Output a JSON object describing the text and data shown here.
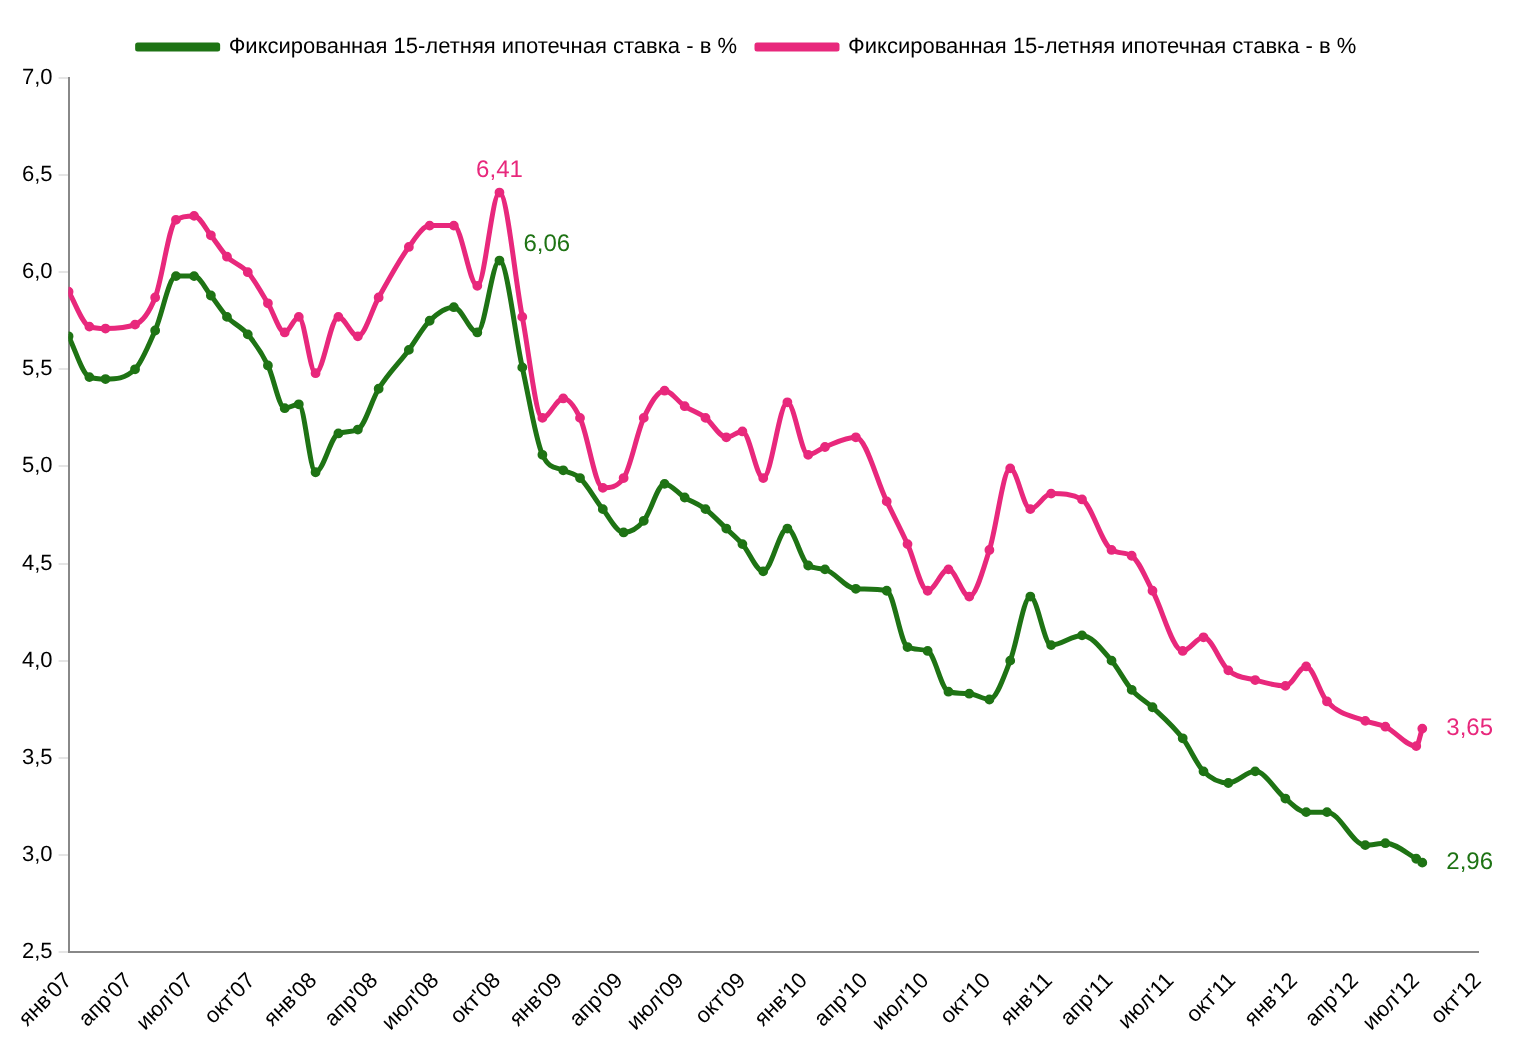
{
  "chart_data": {
    "type": "line",
    "x": [
      "2007-01-01",
      "2007-02-01",
      "2007-02-25",
      "2007-04-10",
      "2007-05-10",
      "2007-06-10",
      "2007-07-07",
      "2007-08-01",
      "2007-08-25",
      "2007-09-25",
      "2007-10-25",
      "2007-11-19",
      "2007-12-10",
      "2008-01-04",
      "2008-02-07",
      "2008-03-07",
      "2008-04-07",
      "2008-05-22",
      "2008-06-22",
      "2008-07-28",
      "2008-09-01",
      "2008-10-04",
      "2008-11-07",
      "2008-12-07",
      "2009-01-07",
      "2009-02-01",
      "2009-03-07",
      "2009-04-07",
      "2009-05-07",
      "2009-06-07",
      "2009-07-07",
      "2009-08-07",
      "2009-09-07",
      "2009-10-01",
      "2009-11-01",
      "2009-12-07",
      "2010-01-07",
      "2010-02-01",
      "2010-03-19",
      "2010-05-04",
      "2010-06-04",
      "2010-07-04",
      "2010-08-04",
      "2010-09-04",
      "2010-10-04",
      "2010-11-04",
      "2010-12-04",
      "2011-01-04",
      "2011-02-19",
      "2011-04-04",
      "2011-05-04",
      "2011-06-04",
      "2011-07-19",
      "2011-08-19",
      "2011-09-25",
      "2011-11-04",
      "2011-12-19",
      "2012-01-19",
      "2012-02-19",
      "2012-04-16",
      "2012-05-16",
      "2012-07-01",
      "2012-07-10"
    ],
    "series": [
      {
        "name": "Фиксированная 15-летняя ипотечная ставка - в %",
        "color": "#1e7314",
        "values": [
          5.67,
          5.46,
          5.45,
          5.5,
          5.7,
          5.98,
          5.98,
          5.88,
          5.77,
          5.68,
          5.52,
          5.3,
          5.32,
          4.97,
          5.17,
          5.19,
          5.4,
          5.6,
          5.75,
          5.82,
          5.69,
          6.06,
          5.51,
          5.06,
          4.98,
          4.94,
          4.78,
          4.66,
          4.72,
          4.91,
          4.84,
          4.78,
          4.68,
          4.6,
          4.46,
          4.68,
          4.49,
          4.47,
          4.37,
          4.36,
          4.07,
          4.05,
          3.84,
          3.83,
          3.8,
          4.0,
          4.33,
          4.08,
          4.13,
          4.0,
          3.85,
          3.76,
          3.6,
          3.43,
          3.37,
          3.43,
          3.29,
          3.22,
          3.22,
          3.05,
          3.06,
          2.98,
          2.96
        ]
      },
      {
        "name": "Фиксированная 15-летняя ипотечная ставка - в %",
        "color": "#e8287c",
        "values": [
          5.9,
          5.72,
          5.71,
          5.73,
          5.87,
          6.27,
          6.29,
          6.19,
          6.08,
          6.0,
          5.84,
          5.69,
          5.77,
          5.48,
          5.77,
          5.67,
          5.87,
          6.13,
          6.24,
          6.24,
          5.93,
          6.41,
          5.77,
          5.25,
          5.35,
          5.25,
          4.89,
          4.94,
          5.25,
          5.39,
          5.31,
          5.25,
          5.15,
          5.18,
          4.94,
          5.33,
          5.06,
          5.1,
          5.15,
          4.82,
          4.6,
          4.36,
          4.47,
          4.33,
          4.57,
          4.99,
          4.78,
          4.86,
          4.83,
          4.57,
          4.54,
          4.36,
          4.05,
          4.12,
          3.95,
          3.9,
          3.87,
          3.97,
          3.79,
          3.69,
          3.66,
          3.56,
          3.65
        ]
      }
    ],
    "xlim": [
      "2007-01",
      "2012-10"
    ],
    "xticks": [
      {
        "value": "2007-01",
        "label": "янв'07"
      },
      {
        "value": "2007-04",
        "label": "апр'07"
      },
      {
        "value": "2007-07",
        "label": "июл'07"
      },
      {
        "value": "2007-10",
        "label": "окт'07"
      },
      {
        "value": "2008-01",
        "label": "янв'08"
      },
      {
        "value": "2008-04",
        "label": "апр'08"
      },
      {
        "value": "2008-07",
        "label": "июл'08"
      },
      {
        "value": "2008-10",
        "label": "окт'08"
      },
      {
        "value": "2009-01",
        "label": "янв'09"
      },
      {
        "value": "2009-04",
        "label": "апр'09"
      },
      {
        "value": "2009-07",
        "label": "июл'09"
      },
      {
        "value": "2009-10",
        "label": "окт'09"
      },
      {
        "value": "2010-01",
        "label": "янв'10"
      },
      {
        "value": "2010-04",
        "label": "апр'10"
      },
      {
        "value": "2010-07",
        "label": "июл'10"
      },
      {
        "value": "2010-10",
        "label": "окт'10"
      },
      {
        "value": "2011-01",
        "label": "янв'11"
      },
      {
        "value": "2011-04",
        "label": "апр'11"
      },
      {
        "value": "2011-07",
        "label": "июл'11"
      },
      {
        "value": "2011-10",
        "label": "окт'11"
      },
      {
        "value": "2012-01",
        "label": "янв'12"
      },
      {
        "value": "2012-04",
        "label": "апр'12"
      },
      {
        "value": "2012-07",
        "label": "июл'12"
      },
      {
        "value": "2012-10",
        "label": "окт'12"
      }
    ],
    "ylim": [
      2.5,
      7
    ],
    "yticks": [
      {
        "value": 2.5,
        "label": "2,5"
      },
      {
        "value": 3,
        "label": "3,0"
      },
      {
        "value": 3.5,
        "label": "3,5"
      },
      {
        "value": 4,
        "label": "4,0"
      },
      {
        "value": 4.5,
        "label": "4,5"
      },
      {
        "value": 5,
        "label": "5,0"
      },
      {
        "value": 5.5,
        "label": "5,5"
      },
      {
        "value": 6,
        "label": "6,0"
      },
      {
        "value": 6.5,
        "label": "6,5"
      },
      {
        "value": 7,
        "label": "7,0"
      }
    ],
    "annotations": [
      {
        "text": "6,41",
        "x": "2008-10-04",
        "y": 6.41
      },
      {
        "text": "6,06",
        "x": "2008-10-04",
        "y": 6.06
      },
      {
        "text": "3,65",
        "x": "2012-07-10",
        "y": 3.65
      },
      {
        "text": "2,96",
        "x": "2012-07-10",
        "y": 2.96
      }
    ],
    "grid": false,
    "legend": "top",
    "marker": "circle",
    "line_style": "solid"
  }
}
